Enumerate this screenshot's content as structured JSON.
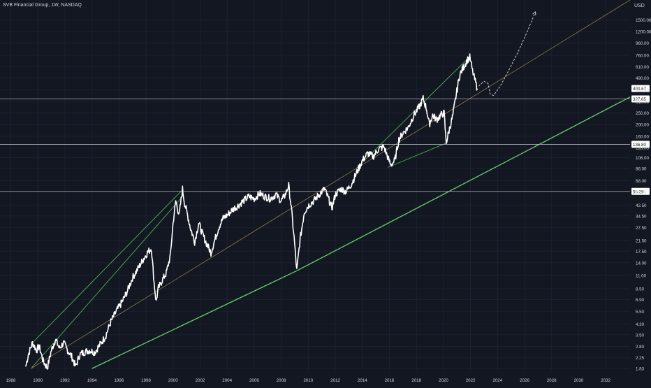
{
  "header": {
    "symbol": "SVB Financial Group, 1W, NASDAQ"
  },
  "colors": {
    "background": "#131722",
    "price_line": "#ffffff",
    "trend_green": "#4caf50",
    "trend_green_bright": "#66d06a",
    "mid_trend": "#8a7a55",
    "hline": "#b2b5be",
    "text": "#d1d4dc",
    "projection": "#c9c9c9"
  },
  "chart_data": {
    "type": "line",
    "scale": "log",
    "currency_label": "USD",
    "x_tick_labels": [
      "1988",
      "1990",
      "1992",
      "1994",
      "1996",
      "1998",
      "2000",
      "2002",
      "2004",
      "2006",
      "2008",
      "2010",
      "2012",
      "2014",
      "2016",
      "2018",
      "2020",
      "2022",
      "2024",
      "2026",
      "2028",
      "2030",
      "2032"
    ],
    "x_ticks": [
      1988,
      1990,
      1992,
      1994,
      1996,
      1998,
      2000,
      2002,
      2004,
      2006,
      2008,
      2010,
      2012,
      2014,
      2016,
      2018,
      2020,
      2022,
      2024,
      2026,
      2028,
      2030,
      2032
    ],
    "y_tick_labels": [
      "1500.00",
      "1200.00",
      "960.00",
      "760.00",
      "610.00",
      "490.00",
      "390.00",
      "310.00",
      "250.00",
      "200.00",
      "160.00",
      "128.00",
      "106.00",
      "86.00",
      "68.00",
      "55.00",
      "42.50",
      "34.50",
      "27.50",
      "21.50",
      "17.50",
      "14.00",
      "11.00",
      "8.50",
      "6.90",
      "5.50",
      "4.30",
      "3.50",
      "2.80",
      "2.25",
      "1.83"
    ],
    "y_ticks": [
      1500,
      1200,
      960,
      760,
      610,
      490,
      390,
      310,
      250,
      200,
      160,
      128,
      106,
      86,
      68,
      55,
      42.5,
      34.5,
      27.5,
      21.5,
      17.5,
      14,
      11,
      8.5,
      6.9,
      5.5,
      4.3,
      3.5,
      2.8,
      2.25,
      1.83
    ],
    "xlim": [
      1987.2,
      2033.8
    ],
    "ylim": [
      1.76,
      2200
    ],
    "horizontal_levels": [
      {
        "label": "400.67",
        "value": 400.67,
        "kind": "last"
      },
      {
        "label": "327.65",
        "value": 327.65,
        "kind": "level"
      },
      {
        "label": "136.80",
        "value": 136.8,
        "kind": "level"
      },
      {
        "label": "55.29",
        "value": 55.29,
        "kind": "level"
      }
    ],
    "series": [
      {
        "type": "line",
        "points": [
          [
            1989.1,
            1.9
          ],
          [
            1989.3,
            2.4
          ],
          [
            1989.6,
            3.0
          ],
          [
            1989.9,
            2.6
          ],
          [
            1990.1,
            2.8
          ],
          [
            1990.4,
            2.1
          ],
          [
            1990.7,
            1.85
          ],
          [
            1991.0,
            2.6
          ],
          [
            1991.3,
            3.2
          ],
          [
            1991.6,
            2.7
          ],
          [
            1991.9,
            3.0
          ],
          [
            1992.2,
            2.6
          ],
          [
            1992.5,
            2.3
          ],
          [
            1992.8,
            1.9
          ],
          [
            1993.1,
            2.4
          ],
          [
            1993.4,
            2.5
          ],
          [
            1993.8,
            2.6
          ],
          [
            1994.2,
            2.5
          ],
          [
            1994.6,
            2.9
          ],
          [
            1995.0,
            3.4
          ],
          [
            1995.4,
            4.5
          ],
          [
            1995.8,
            5.5
          ],
          [
            1996.2,
            6.5
          ],
          [
            1996.6,
            8.0
          ],
          [
            1997.0,
            10.5
          ],
          [
            1997.4,
            12.5
          ],
          [
            1997.8,
            15.0
          ],
          [
            1998.1,
            17.0
          ],
          [
            1998.4,
            18.5
          ],
          [
            1998.6,
            9.5
          ],
          [
            1998.75,
            6.6
          ],
          [
            1998.9,
            8.5
          ],
          [
            1999.2,
            10.0
          ],
          [
            1999.5,
            11.5
          ],
          [
            1999.8,
            16.0
          ],
          [
            2000.0,
            30.0
          ],
          [
            2000.2,
            46.0
          ],
          [
            2000.45,
            35.0
          ],
          [
            2000.7,
            58.0
          ],
          [
            2000.85,
            44.0
          ],
          [
            2001.0,
            38.0
          ],
          [
            2001.3,
            27.0
          ],
          [
            2001.6,
            21.0
          ],
          [
            2001.9,
            30.0
          ],
          [
            2002.2,
            24.0
          ],
          [
            2002.5,
            20.0
          ],
          [
            2002.8,
            17.0
          ],
          [
            2003.1,
            22.0
          ],
          [
            2003.4,
            28.0
          ],
          [
            2003.7,
            33.0
          ],
          [
            2004.0,
            35.0
          ],
          [
            2004.4,
            39.0
          ],
          [
            2004.8,
            42.0
          ],
          [
            2005.2,
            46.0
          ],
          [
            2005.6,
            50.0
          ],
          [
            2006.0,
            48.0
          ],
          [
            2006.4,
            53.0
          ],
          [
            2006.8,
            50.0
          ],
          [
            2007.2,
            48.0
          ],
          [
            2007.6,
            52.0
          ],
          [
            2008.0,
            46.0
          ],
          [
            2008.3,
            52.0
          ],
          [
            2008.55,
            62.0
          ],
          [
            2008.75,
            40.0
          ],
          [
            2008.95,
            23.0
          ],
          [
            2009.15,
            12.0
          ],
          [
            2009.4,
            22.0
          ],
          [
            2009.7,
            37.0
          ],
          [
            2010.0,
            42.0
          ],
          [
            2010.4,
            46.0
          ],
          [
            2010.8,
            52.0
          ],
          [
            2011.2,
            58.0
          ],
          [
            2011.5,
            48.0
          ],
          [
            2011.75,
            40.0
          ],
          [
            2012.0,
            52.0
          ],
          [
            2012.4,
            58.0
          ],
          [
            2012.8,
            55.0
          ],
          [
            2013.2,
            64.0
          ],
          [
            2013.6,
            80.0
          ],
          [
            2014.0,
            100.0
          ],
          [
            2014.4,
            115.0
          ],
          [
            2014.8,
            108.0
          ],
          [
            2015.2,
            125.0
          ],
          [
            2015.6,
            130.0
          ],
          [
            2015.9,
            105.0
          ],
          [
            2016.1,
            92.0
          ],
          [
            2016.4,
            100.0
          ],
          [
            2016.7,
            150.0
          ],
          [
            2017.0,
            170.0
          ],
          [
            2017.4,
            190.0
          ],
          [
            2017.8,
            240.0
          ],
          [
            2018.2,
            280.0
          ],
          [
            2018.5,
            330.0
          ],
          [
            2018.75,
            270.0
          ],
          [
            2018.95,
            200.0
          ],
          [
            2019.2,
            240.0
          ],
          [
            2019.5,
            220.0
          ],
          [
            2019.8,
            240.0
          ],
          [
            2020.05,
            250.0
          ],
          [
            2020.2,
            140.0
          ],
          [
            2020.45,
            185.0
          ],
          [
            2020.7,
            240.0
          ],
          [
            2020.95,
            360.0
          ],
          [
            2021.2,
            520.0
          ],
          [
            2021.5,
            610.0
          ],
          [
            2021.75,
            690.0
          ],
          [
            2021.95,
            730.0
          ],
          [
            2022.15,
            560.0
          ],
          [
            2022.35,
            460.0
          ],
          [
            2022.5,
            400.67
          ]
        ]
      }
    ],
    "trendlines": [
      {
        "kind": "channel-upper",
        "from": [
          1989.6,
          3.0
        ],
        "to": [
          2000.7,
          57.0
        ]
      },
      {
        "kind": "channel-lower",
        "from": [
          1989.5,
          1.83
        ],
        "to": [
          2000.7,
          50.0
        ]
      },
      {
        "kind": "channel-upper",
        "from": [
          2013.5,
          85.0
        ],
        "to": [
          2021.9,
          730.0
        ]
      },
      {
        "kind": "channel-lower",
        "from": [
          2015.9,
          88.0
        ],
        "to": [
          2020.2,
          140.0
        ]
      },
      {
        "kind": "long-support",
        "from": [
          2009.15,
          12.0
        ],
        "to": [
          2033.8,
          340.0
        ]
      },
      {
        "kind": "long-support",
        "from": [
          1994.0,
          1.83
        ],
        "to": [
          2009.15,
          12.0
        ]
      },
      {
        "kind": "mid",
        "from": [
          1989.5,
          1.83
        ],
        "to": [
          2033.8,
          2200.0
        ]
      }
    ],
    "projection": [
      [
        2022.6,
        420
      ],
      [
        2023.0,
        460
      ],
      [
        2023.3,
        440
      ],
      [
        2023.45,
        360
      ],
      [
        2023.7,
        350
      ],
      [
        2024.2,
        420
      ],
      [
        2024.8,
        560
      ],
      [
        2025.5,
        800
      ],
      [
        2026.2,
        1200
      ],
      [
        2026.8,
        1750
      ]
    ]
  }
}
